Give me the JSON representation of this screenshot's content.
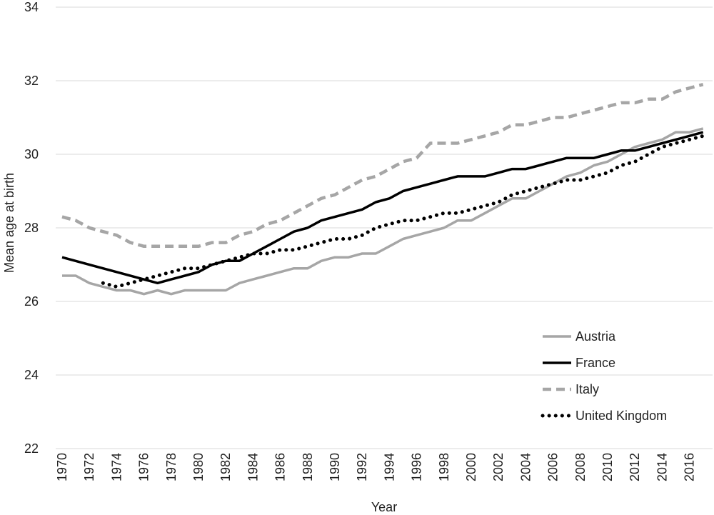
{
  "chart_data": {
    "type": "line",
    "title": "",
    "xlabel": "Year",
    "ylabel": "Mean age at birth",
    "ylim": [
      22,
      34
    ],
    "y_ticks": [
      "22",
      "24",
      "26",
      "28",
      "30",
      "32",
      "34"
    ],
    "xlim": [
      1970,
      2017
    ],
    "x_tick_labels": [
      "1970",
      "1972",
      "1974",
      "1976",
      "1978",
      "1980",
      "1982",
      "1984",
      "1986",
      "1988",
      "1990",
      "1992",
      "1994",
      "1996",
      "1998",
      "2000",
      "2002",
      "2004",
      "2006",
      "2008",
      "2010",
      "2012",
      "2014",
      "2016"
    ],
    "grid": "horizontal",
    "legend_position": "bottom-right",
    "series": [
      {
        "name": "Austria",
        "style": "solid",
        "color": "#a6a6a6",
        "points": [
          [
            1970,
            26.7
          ],
          [
            1971,
            26.7
          ],
          [
            1972,
            26.5
          ],
          [
            1973,
            26.4
          ],
          [
            1974,
            26.3
          ],
          [
            1975,
            26.3
          ],
          [
            1976,
            26.2
          ],
          [
            1977,
            26.3
          ],
          [
            1978,
            26.2
          ],
          [
            1979,
            26.3
          ],
          [
            1980,
            26.3
          ],
          [
            1981,
            26.3
          ],
          [
            1982,
            26.3
          ],
          [
            1983,
            26.5
          ],
          [
            1984,
            26.6
          ],
          [
            1985,
            26.7
          ],
          [
            1986,
            26.8
          ],
          [
            1987,
            26.9
          ],
          [
            1988,
            26.9
          ],
          [
            1989,
            27.1
          ],
          [
            1990,
            27.2
          ],
          [
            1991,
            27.2
          ],
          [
            1992,
            27.3
          ],
          [
            1993,
            27.3
          ],
          [
            1994,
            27.5
          ],
          [
            1995,
            27.7
          ],
          [
            1996,
            27.8
          ],
          [
            1997,
            27.9
          ],
          [
            1998,
            28.0
          ],
          [
            1999,
            28.2
          ],
          [
            2000,
            28.2
          ],
          [
            2001,
            28.4
          ],
          [
            2002,
            28.6
          ],
          [
            2003,
            28.8
          ],
          [
            2004,
            28.8
          ],
          [
            2005,
            29.0
          ],
          [
            2006,
            29.2
          ],
          [
            2007,
            29.4
          ],
          [
            2008,
            29.5
          ],
          [
            2009,
            29.7
          ],
          [
            2010,
            29.8
          ],
          [
            2011,
            30.0
          ],
          [
            2012,
            30.2
          ],
          [
            2013,
            30.3
          ],
          [
            2014,
            30.4
          ],
          [
            2015,
            30.6
          ],
          [
            2016,
            30.6
          ],
          [
            2017,
            30.7
          ]
        ]
      },
      {
        "name": "France",
        "style": "solid",
        "color": "#000000",
        "points": [
          [
            1970,
            27.2
          ],
          [
            1977,
            26.5
          ],
          [
            1978,
            26.6
          ],
          [
            1979,
            26.7
          ],
          [
            1980,
            26.8
          ],
          [
            1981,
            27.0
          ],
          [
            1982,
            27.1
          ],
          [
            1983,
            27.1
          ],
          [
            1984,
            27.3
          ],
          [
            1985,
            27.5
          ],
          [
            1986,
            27.7
          ],
          [
            1987,
            27.9
          ],
          [
            1988,
            28.0
          ],
          [
            1989,
            28.2
          ],
          [
            1990,
            28.3
          ],
          [
            1991,
            28.4
          ],
          [
            1992,
            28.5
          ],
          [
            1993,
            28.7
          ],
          [
            1994,
            28.8
          ],
          [
            1995,
            29.0
          ],
          [
            1996,
            29.1
          ],
          [
            1997,
            29.2
          ],
          [
            1998,
            29.3
          ],
          [
            1999,
            29.4
          ],
          [
            2000,
            29.4
          ],
          [
            2001,
            29.4
          ],
          [
            2002,
            29.5
          ],
          [
            2003,
            29.6
          ],
          [
            2004,
            29.6
          ],
          [
            2005,
            29.7
          ],
          [
            2006,
            29.8
          ],
          [
            2007,
            29.9
          ],
          [
            2008,
            29.9
          ],
          [
            2009,
            29.9
          ],
          [
            2010,
            30.0
          ],
          [
            2011,
            30.1
          ],
          [
            2012,
            30.1
          ],
          [
            2013,
            30.2
          ],
          [
            2014,
            30.3
          ],
          [
            2015,
            30.4
          ],
          [
            2016,
            30.5
          ],
          [
            2017,
            30.6
          ]
        ]
      },
      {
        "name": "Italy",
        "style": "dashed",
        "color": "#a6a6a6",
        "points": [
          [
            1970,
            28.3
          ],
          [
            1971,
            28.2
          ],
          [
            1972,
            28.0
          ],
          [
            1973,
            27.9
          ],
          [
            1974,
            27.8
          ],
          [
            1975,
            27.6
          ],
          [
            1976,
            27.5
          ],
          [
            1977,
            27.5
          ],
          [
            1978,
            27.5
          ],
          [
            1979,
            27.5
          ],
          [
            1980,
            27.5
          ],
          [
            1981,
            27.6
          ],
          [
            1982,
            27.6
          ],
          [
            1983,
            27.8
          ],
          [
            1984,
            27.9
          ],
          [
            1985,
            28.1
          ],
          [
            1986,
            28.2
          ],
          [
            1987,
            28.4
          ],
          [
            1988,
            28.6
          ],
          [
            1989,
            28.8
          ],
          [
            1990,
            28.9
          ],
          [
            1991,
            29.1
          ],
          [
            1992,
            29.3
          ],
          [
            1993,
            29.4
          ],
          [
            1994,
            29.6
          ],
          [
            1995,
            29.8
          ],
          [
            1996,
            29.9
          ],
          [
            1997,
            30.3
          ],
          [
            1998,
            30.3
          ],
          [
            1999,
            30.3
          ],
          [
            2000,
            30.4
          ],
          [
            2001,
            30.5
          ],
          [
            2002,
            30.6
          ],
          [
            2003,
            30.8
          ],
          [
            2004,
            30.8
          ],
          [
            2005,
            30.9
          ],
          [
            2006,
            31.0
          ],
          [
            2007,
            31.0
          ],
          [
            2008,
            31.1
          ],
          [
            2009,
            31.2
          ],
          [
            2010,
            31.3
          ],
          [
            2011,
            31.4
          ],
          [
            2012,
            31.4
          ],
          [
            2013,
            31.5
          ],
          [
            2014,
            31.5
          ],
          [
            2015,
            31.7
          ],
          [
            2016,
            31.8
          ],
          [
            2017,
            31.9
          ]
        ]
      },
      {
        "name": "United Kingdom",
        "style": "dotted",
        "color": "#000000",
        "points": [
          [
            1973,
            26.5
          ],
          [
            1974,
            26.4
          ],
          [
            1975,
            26.5
          ],
          [
            1976,
            26.6
          ],
          [
            1977,
            26.7
          ],
          [
            1978,
            26.8
          ],
          [
            1979,
            26.9
          ],
          [
            1980,
            26.9
          ],
          [
            1981,
            27.0
          ],
          [
            1982,
            27.1
          ],
          [
            1983,
            27.2
          ],
          [
            1984,
            27.3
          ],
          [
            1985,
            27.3
          ],
          [
            1986,
            27.4
          ],
          [
            1987,
            27.4
          ],
          [
            1988,
            27.5
          ],
          [
            1989,
            27.6
          ],
          [
            1990,
            27.7
          ],
          [
            1991,
            27.7
          ],
          [
            1992,
            27.8
          ],
          [
            1993,
            28.0
          ],
          [
            1994,
            28.1
          ],
          [
            1995,
            28.2
          ],
          [
            1996,
            28.2
          ],
          [
            1997,
            28.3
          ],
          [
            1998,
            28.4
          ],
          [
            1999,
            28.4
          ],
          [
            2000,
            28.5
          ],
          [
            2001,
            28.6
          ],
          [
            2002,
            28.7
          ],
          [
            2003,
            28.9
          ],
          [
            2004,
            29.0
          ],
          [
            2005,
            29.1
          ],
          [
            2006,
            29.2
          ],
          [
            2007,
            29.3
          ],
          [
            2008,
            29.3
          ],
          [
            2009,
            29.4
          ],
          [
            2010,
            29.5
          ],
          [
            2011,
            29.7
          ],
          [
            2012,
            29.8
          ],
          [
            2013,
            30.0
          ],
          [
            2014,
            30.2
          ],
          [
            2015,
            30.3
          ],
          [
            2016,
            30.4
          ],
          [
            2017,
            30.5
          ]
        ]
      }
    ]
  }
}
